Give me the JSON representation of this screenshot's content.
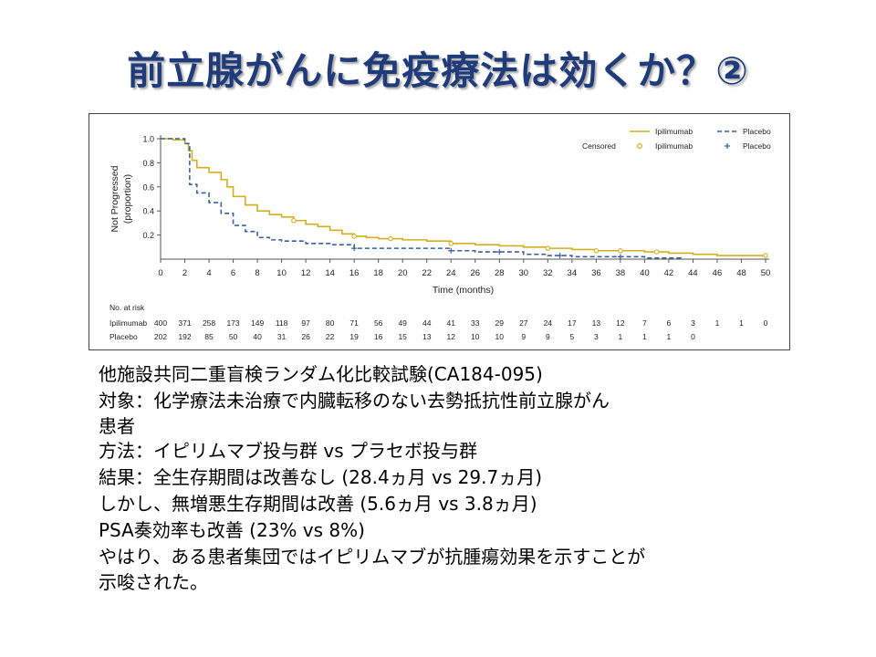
{
  "slide": {
    "title": "前立腺がんに免疫療法は効くか？②"
  },
  "chart_data": {
    "type": "line",
    "title": "",
    "xlabel": "Time (months)",
    "ylabel_line1": "Not Progressed",
    "ylabel_line2": "(proportion)",
    "xlim": [
      0,
      50
    ],
    "ylim": [
      0,
      1.0
    ],
    "x_ticks": [
      0,
      2,
      4,
      6,
      8,
      10,
      12,
      14,
      16,
      18,
      20,
      22,
      24,
      26,
      28,
      30,
      32,
      34,
      36,
      38,
      40,
      42,
      44,
      46,
      48,
      50
    ],
    "y_ticks": [
      0.2,
      0.4,
      0.6,
      0.8,
      1.0
    ],
    "y_tick_labels": [
      "0.2",
      "0.4",
      "0.6",
      "0.8",
      "1.0"
    ],
    "legend": {
      "position": "top-right",
      "censored_label": "Censored",
      "entries": [
        {
          "name": "Ipilimumab",
          "line_style": "solid",
          "color": "#d4af1e",
          "marker": "o"
        },
        {
          "name": "Placebo",
          "line_style": "dashed",
          "color": "#3b5fa8",
          "marker": "+"
        }
      ]
    },
    "series": [
      {
        "name": "Ipilimumab",
        "color": "#d4af1e",
        "style": "solid",
        "x": [
          0,
          1,
          2,
          2.3,
          2.6,
          3,
          4,
          5,
          5.5,
          6,
          7,
          8,
          9,
          10,
          11,
          12,
          13,
          14,
          15,
          16,
          17,
          18,
          20,
          22,
          24,
          26,
          28,
          30,
          32,
          34,
          36,
          38,
          40,
          42,
          44,
          46,
          48,
          50
        ],
        "y": [
          1.0,
          0.99,
          0.96,
          0.9,
          0.82,
          0.76,
          0.72,
          0.66,
          0.6,
          0.52,
          0.45,
          0.4,
          0.37,
          0.35,
          0.32,
          0.29,
          0.27,
          0.24,
          0.21,
          0.19,
          0.18,
          0.17,
          0.16,
          0.15,
          0.13,
          0.12,
          0.11,
          0.1,
          0.09,
          0.08,
          0.07,
          0.07,
          0.06,
          0.05,
          0.04,
          0.03,
          0.03,
          0.03
        ],
        "censored_x": [
          11,
          16,
          19,
          24,
          32,
          36,
          38,
          41,
          50
        ]
      },
      {
        "name": "Placebo",
        "color": "#3b5fa8",
        "style": "dashed",
        "x": [
          0,
          2,
          2.4,
          3,
          4,
          5,
          6,
          7,
          8,
          9,
          10,
          12,
          14,
          16,
          18,
          20,
          22,
          24,
          26,
          28,
          30,
          32,
          34,
          36,
          40,
          43
        ],
        "y": [
          1.0,
          0.96,
          0.62,
          0.55,
          0.47,
          0.38,
          0.28,
          0.23,
          0.18,
          0.16,
          0.15,
          0.13,
          0.12,
          0.09,
          0.09,
          0.09,
          0.09,
          0.07,
          0.06,
          0.06,
          0.04,
          0.03,
          0.02,
          0.02,
          0.01,
          0.0
        ],
        "censored_x": [
          16,
          24,
          28,
          33,
          38
        ]
      }
    ],
    "risk_table": {
      "title": "No. at risk",
      "rows": [
        {
          "name": "Ipilimumab",
          "values": [
            "400",
            "371",
            "258",
            "173",
            "149",
            "118",
            "97",
            "80",
            "71",
            "56",
            "49",
            "44",
            "41",
            "33",
            "29",
            "27",
            "24",
            "17",
            "13",
            "12",
            "7",
            "6",
            "3",
            "1",
            "1",
            "0"
          ]
        },
        {
          "name": "Placebo",
          "values": [
            "202",
            "192",
            "85",
            "50",
            "40",
            "31",
            "26",
            "22",
            "19",
            "16",
            "15",
            "13",
            "12",
            "10",
            "10",
            "9",
            "9",
            "5",
            "3",
            "1",
            "1",
            "1",
            "0",
            "",
            "",
            ""
          ]
        }
      ]
    }
  },
  "bullets": [
    "他施設共同二重盲検ランダム化比較試験(CA184-095)",
    "対象：化学療法未治療で内臓転移のない去勢抵抗性前立腺がん",
    "患者",
    "方法：イピリムマブ投与群 vs プラセボ投与群",
    "結果：全生存期間は改善なし (28.4ヵ月 vs 29.7ヵ月)",
    "しかし、無増悪生存期間は改善 (5.6ヵ月 vs 3.8ヵ月)",
    "PSA奏効率も改善 (23% vs 8%)",
    "やはり、ある患者集団ではイピリムマブが抗腫瘍効果を示すことが",
    "示唆された。"
  ]
}
